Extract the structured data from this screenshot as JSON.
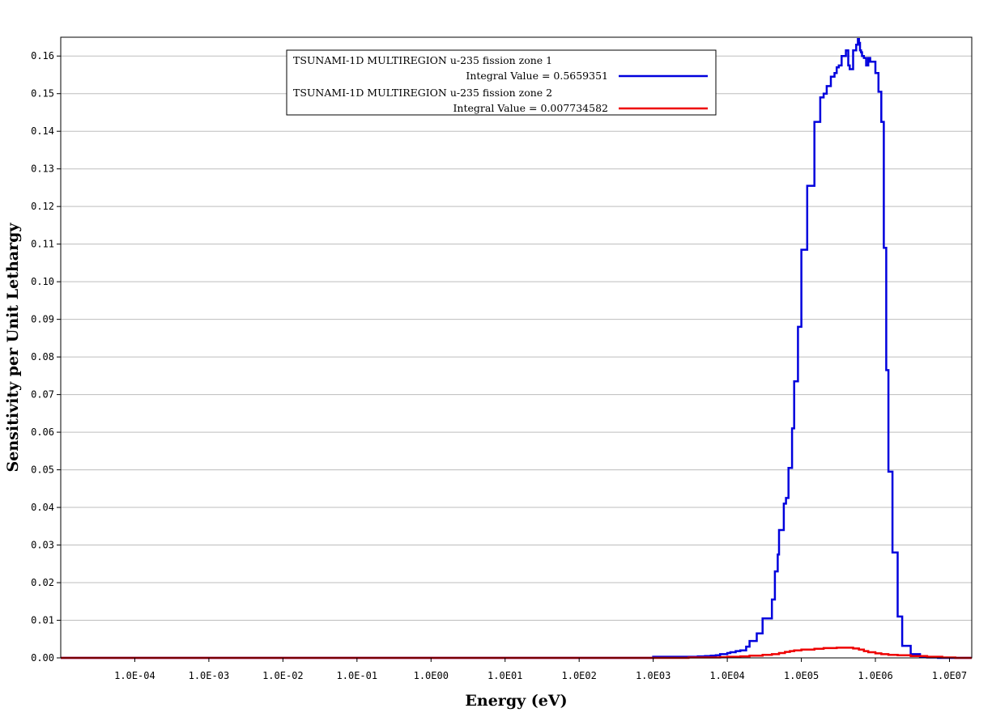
{
  "chart_data": {
    "type": "line",
    "step": true,
    "xscale": "log",
    "title": "",
    "xlabel": "Energy (eV)",
    "ylabel": "Sensitivity per Unit Lethargy",
    "xlim": [
      1e-05,
      20000000.0
    ],
    "ylim": [
      0.0,
      0.165
    ],
    "grid": "horizontal",
    "legend_position": "top-center",
    "x_ticks": [
      {
        "value": 0.0001,
        "label": "1.0E-04"
      },
      {
        "value": 0.001,
        "label": "1.0E-03"
      },
      {
        "value": 0.01,
        "label": "1.0E-02"
      },
      {
        "value": 0.1,
        "label": "1.0E-01"
      },
      {
        "value": 1,
        "label": "1.0E00"
      },
      {
        "value": 10,
        "label": "1.0E01"
      },
      {
        "value": 100,
        "label": "1.0E02"
      },
      {
        "value": 1000,
        "label": "1.0E03"
      },
      {
        "value": 10000,
        "label": "1.0E04"
      },
      {
        "value": 100000,
        "label": "1.0E05"
      },
      {
        "value": 1000000,
        "label": "1.0E06"
      },
      {
        "value": 10000000,
        "label": "1.0E07"
      }
    ],
    "y_ticks": [
      {
        "value": 0.0,
        "label": "0.00"
      },
      {
        "value": 0.01,
        "label": "0.01"
      },
      {
        "value": 0.02,
        "label": "0.02"
      },
      {
        "value": 0.03,
        "label": "0.03"
      },
      {
        "value": 0.04,
        "label": "0.04"
      },
      {
        "value": 0.05,
        "label": "0.05"
      },
      {
        "value": 0.06,
        "label": "0.06"
      },
      {
        "value": 0.07,
        "label": "0.07"
      },
      {
        "value": 0.08,
        "label": "0.08"
      },
      {
        "value": 0.09,
        "label": "0.09"
      },
      {
        "value": 0.1,
        "label": "0.10"
      },
      {
        "value": 0.11,
        "label": "0.11"
      },
      {
        "value": 0.12,
        "label": "0.12"
      },
      {
        "value": 0.13,
        "label": "0.13"
      },
      {
        "value": 0.14,
        "label": "0.14"
      },
      {
        "value": 0.15,
        "label": "0.15"
      },
      {
        "value": 0.16,
        "label": "0.16"
      }
    ],
    "series": [
      {
        "name": "TSUNAMI-1D MULTIREGION u-235 fission zone 1",
        "integral_label": "Integral Value = 0.5659351",
        "color": "#0000dd",
        "x": [
          1e-05,
          1000,
          1230,
          2000,
          3000,
          4000,
          5000,
          6000,
          7000,
          8000,
          10000,
          11000,
          13000,
          15000,
          18000,
          20000,
          25000,
          30000,
          40000,
          44000,
          48000,
          50000,
          58000,
          62000,
          67000,
          72000,
          75000,
          80000,
          90000,
          100000,
          120000,
          150000,
          180000,
          200000,
          220000,
          250000,
          280000,
          300000,
          320000,
          350000,
          380000,
          400000,
          430000,
          450000,
          500000,
          550000,
          580000,
          600000,
          620000,
          640000,
          660000,
          700000,
          750000,
          800000,
          850000,
          900000,
          1000000,
          1050000,
          1100000,
          1200000,
          1300000,
          1400000,
          1500000,
          1700000,
          2000000,
          2300000,
          3000000,
          4000000,
          4500000,
          5000000,
          7000000,
          9000000,
          11000000,
          13000000,
          14000000,
          17000000
        ],
        "y": [
          0.0,
          0.0003,
          0.0003,
          0.0003,
          0.0003,
          0.0004,
          0.0005,
          0.0006,
          0.0007,
          0.001,
          0.0013,
          0.0015,
          0.0018,
          0.002,
          0.003,
          0.0045,
          0.0065,
          0.0105,
          0.0155,
          0.023,
          0.0275,
          0.034,
          0.041,
          0.0425,
          0.0505,
          0.0505,
          0.061,
          0.0735,
          0.088,
          0.1085,
          0.1255,
          0.1425,
          0.149,
          0.15,
          0.152,
          0.1545,
          0.1555,
          0.157,
          0.1575,
          0.16,
          0.16,
          0.1615,
          0.1575,
          0.1565,
          0.1615,
          0.163,
          0.1645,
          0.1635,
          0.1615,
          0.161,
          0.16,
          0.1595,
          0.1575,
          0.1595,
          0.1585,
          0.1585,
          0.1555,
          0.1555,
          0.1505,
          0.1425,
          0.109,
          0.0765,
          0.0495,
          0.028,
          0.011,
          0.0032,
          0.001,
          0.0003,
          0.0002,
          0.0001,
          0.0,
          0.0,
          0.0,
          0.0,
          0.0,
          0.0
        ]
      },
      {
        "name": "TSUNAMI-1D MULTIREGION u-235 fission zone 2",
        "integral_label": "Integral Value = 0.007734582",
        "color": "#ee0000",
        "x": [
          1e-05,
          1000,
          3000,
          8000,
          10000,
          15000,
          20000,
          30000,
          40000,
          50000,
          60000,
          70000,
          80000,
          100000,
          150000,
          200000,
          300000,
          400000,
          500000,
          600000,
          700000,
          800000,
          1000000,
          1200000,
          1500000,
          2000000,
          3000000,
          5000000,
          8000000,
          12000000,
          17000000
        ],
        "y": [
          0.0,
          0.0,
          0.0001,
          0.0002,
          0.0003,
          0.0004,
          0.0006,
          0.0008,
          0.001,
          0.0013,
          0.0016,
          0.0018,
          0.002,
          0.0022,
          0.0024,
          0.0026,
          0.0027,
          0.0027,
          0.0025,
          0.0022,
          0.0018,
          0.0015,
          0.0012,
          0.001,
          0.0008,
          0.0007,
          0.0005,
          0.0003,
          0.0001,
          0.0,
          0.0
        ]
      }
    ]
  }
}
